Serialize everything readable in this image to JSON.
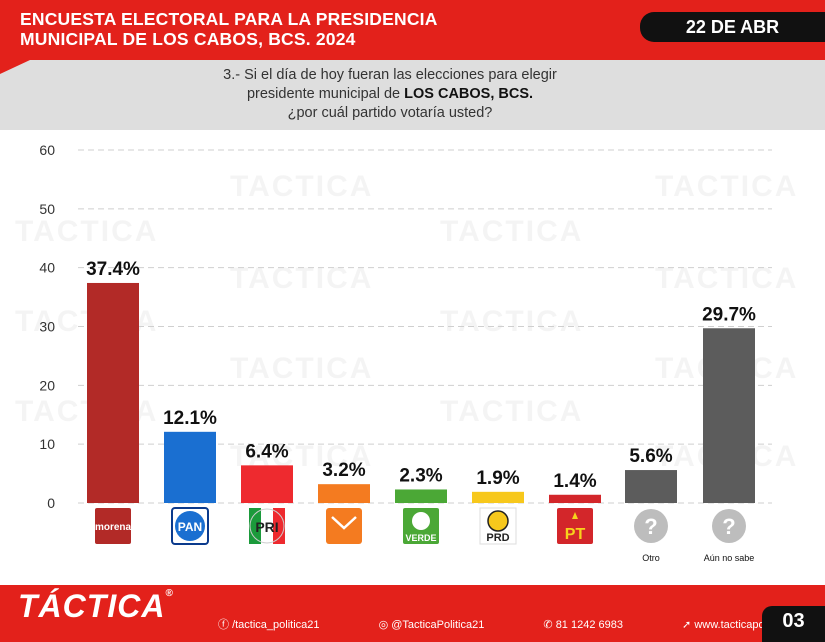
{
  "header": {
    "title": "ENCUESTA ELECTORAL PARA LA PRESIDENCIA\nMUNICIPAL DE LOS CABOS, BCS.  2024",
    "date": "22 DE ABR"
  },
  "question": {
    "line1": "3.- Si el día de hoy fueran las elecciones para elegir",
    "line2_prefix": "presidente municipal de ",
    "line2_bold": "LOS CABOS, BCS.",
    "line3": "¿por cuál partido votaría usted?"
  },
  "watermark_text": "TACTICA",
  "colors": {
    "brand_red": "#e3211b",
    "morena": "#b22a27",
    "pan": "#1a6fd1",
    "pri": "#ee2a2f",
    "mc": "#f47b20",
    "verde": "#4ba836",
    "prd": "#f7c81c",
    "pt": "#d3262a",
    "gray": "#5c5c5c"
  },
  "chart_data": {
    "type": "bar",
    "title": "¿por cuál partido votaría usted?",
    "xlabel": "",
    "ylabel": "",
    "ylim": [
      0,
      60
    ],
    "yticks": [
      0,
      10,
      20,
      30,
      40,
      50,
      60
    ],
    "grid": true,
    "categories": [
      "morena",
      "PAN",
      "PRI",
      "MC",
      "VERDE",
      "PRD",
      "PT",
      "Otro",
      "Aún no sabe"
    ],
    "values": [
      37.4,
      12.1,
      6.4,
      3.2,
      2.3,
      1.9,
      1.4,
      5.6,
      29.7
    ],
    "value_labels": [
      "37.4%",
      "12.1%",
      "6.4%",
      "3.2%",
      "2.3%",
      "1.9%",
      "1.4%",
      "5.6%",
      "29.7%"
    ],
    "bar_colors": [
      "#b22a27",
      "#1a6fd1",
      "#ee2a2f",
      "#f47b20",
      "#4ba836",
      "#f7c81c",
      "#d3262a",
      "#5c5c5c",
      "#5c5c5c"
    ],
    "category_labels": [
      "",
      "",
      "",
      "",
      "",
      "",
      "",
      "Otro",
      "Aún no sabe"
    ],
    "logo_texts": [
      "morena",
      "PAN",
      "PRI",
      "",
      "VERDE",
      "PRD",
      "PT",
      "?",
      "?"
    ]
  },
  "footer": {
    "logo": "TÁCTICA",
    "logo_mark": "®",
    "facebook": "/tactica_politica21",
    "instagram": "@TacticaPolitica21",
    "phone": "81 1242 6983",
    "web": "www.tacticapolitica.com",
    "page": "03"
  }
}
